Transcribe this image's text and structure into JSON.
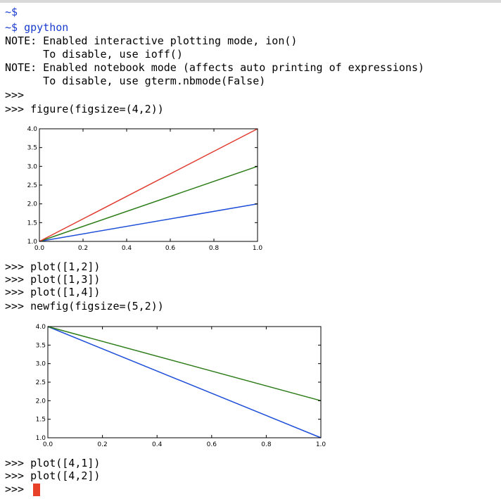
{
  "terminal": {
    "lines": [
      {
        "text": "~$",
        "color": "#1a3ccf"
      },
      {
        "text": "~$ gpython",
        "color": "#1a3ccf"
      },
      {
        "text": "NOTE: Enabled interactive plotting mode, ion()"
      },
      {
        "text": "      To disable, use ioff()"
      },
      {
        "text": "NOTE: Enabled notebook mode (affects auto printing of expressions)"
      },
      {
        "text": "      To disable, use gterm.nbmode(False)"
      },
      {
        "text": ">>>"
      },
      {
        "text": ">>> figure(figsize=(4,2))"
      }
    ],
    "lines_mid": [
      {
        "text": ">>> plot([1,2])"
      },
      {
        "text": ">>> plot([1,3])"
      },
      {
        "text": ">>> plot([1,4])"
      },
      {
        "text": ">>> newfig(figsize=(5,2))"
      }
    ],
    "lines_end": [
      {
        "text": ">>> plot([4,1])"
      },
      {
        "text": ">>> plot([4,2])"
      },
      {
        "text": ">>>"
      }
    ],
    "cursor_color": "#e8412a"
  },
  "chart_data": [
    {
      "type": "line",
      "xlim": [
        0.0,
        1.0
      ],
      "ylim": [
        1.0,
        4.0
      ],
      "x_ticks": [
        "0.0",
        "0.2",
        "0.4",
        "0.6",
        "0.8",
        "1.0"
      ],
      "y_ticks": [
        "1.0",
        "1.5",
        "2.0",
        "2.5",
        "3.0",
        "3.5",
        "4.0"
      ],
      "series": [
        {
          "x": [
            0,
            1
          ],
          "y": [
            1,
            2
          ],
          "color": "#1f4fd8"
        },
        {
          "x": [
            0,
            1
          ],
          "y": [
            1,
            3
          ],
          "color": "#2e7d1a"
        },
        {
          "x": [
            0,
            1
          ],
          "y": [
            1,
            4
          ],
          "color": "#e03c31"
        }
      ]
    },
    {
      "type": "line",
      "xlim": [
        0.0,
        1.0
      ],
      "ylim": [
        1.0,
        4.0
      ],
      "x_ticks": [
        "0.0",
        "0.2",
        "0.4",
        "0.6",
        "0.8",
        "1.0"
      ],
      "y_ticks": [
        "1.0",
        "1.5",
        "2.0",
        "2.5",
        "3.0",
        "3.5",
        "4.0"
      ],
      "series": [
        {
          "x": [
            0,
            1
          ],
          "y": [
            4,
            1
          ],
          "color": "#1f4fd8"
        },
        {
          "x": [
            0,
            1
          ],
          "y": [
            4,
            2
          ],
          "color": "#2e7d1a"
        }
      ]
    }
  ]
}
